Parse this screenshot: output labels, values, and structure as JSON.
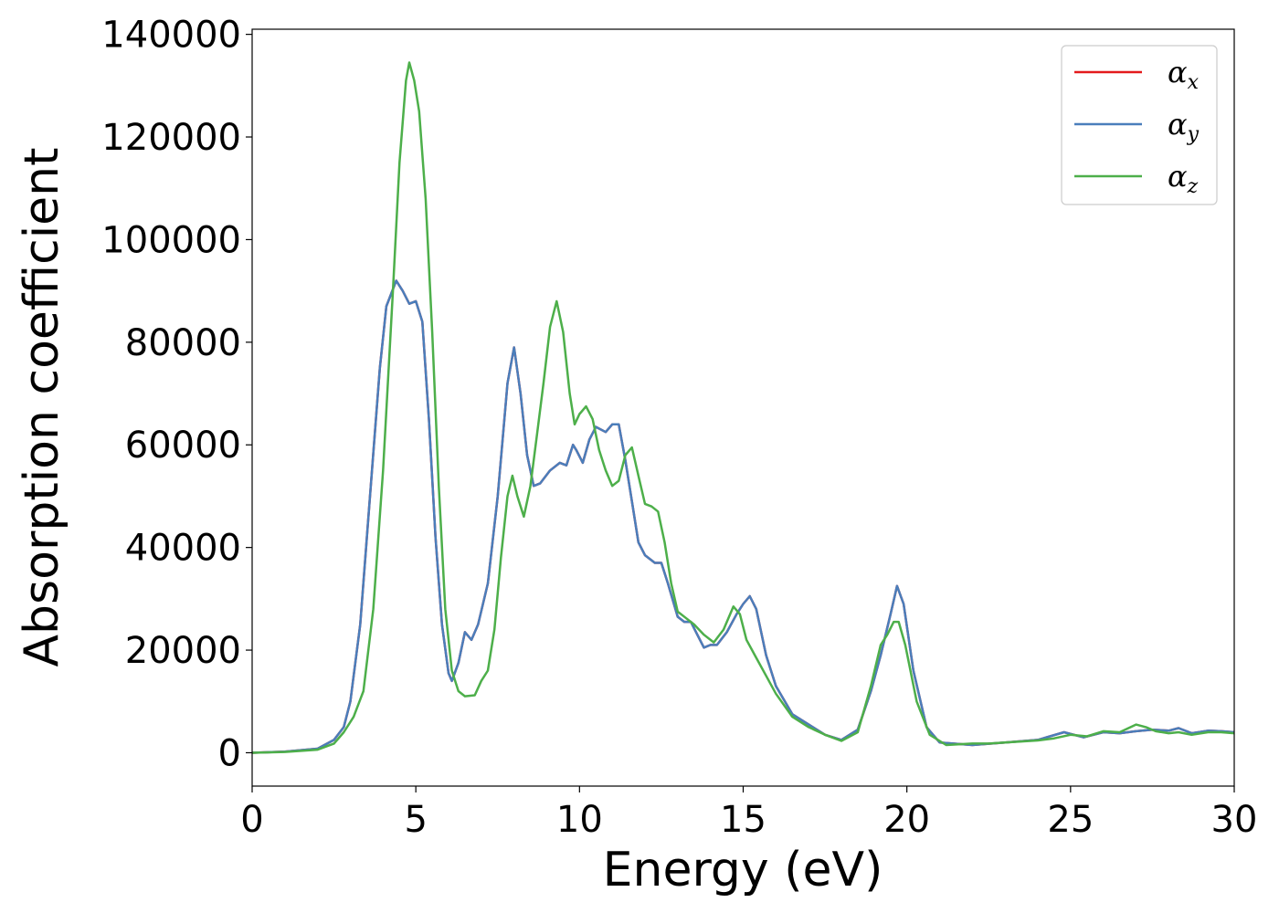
{
  "chart_data": {
    "type": "line",
    "title": "",
    "xlabel": "Energy (eV)",
    "ylabel": "Absorption coefficient",
    "xlim": [
      0,
      30
    ],
    "ylim": [
      -6500,
      141000
    ],
    "xticks": [
      0,
      5,
      10,
      15,
      20,
      25,
      30
    ],
    "yticks": [
      0,
      20000,
      40000,
      60000,
      80000,
      100000,
      120000,
      140000
    ],
    "grid": false,
    "legend": {
      "position": "top-right",
      "items": [
        {
          "symbol": "α",
          "sub": "x",
          "series": "alpha_x"
        },
        {
          "symbol": "α",
          "sub": "y",
          "series": "alpha_y"
        },
        {
          "symbol": "α",
          "sub": "z",
          "series": "alpha_z"
        }
      ]
    },
    "colors": {
      "alpha_x": "#e41a1c",
      "alpha_y": "#4a7ebb",
      "alpha_z": "#4daf4a"
    },
    "series": [
      {
        "key": "alpha_x",
        "points": [
          [
            0,
            0
          ],
          [
            1,
            200
          ],
          [
            2,
            800
          ],
          [
            2.5,
            2500
          ],
          [
            2.8,
            5000
          ],
          [
            3.0,
            10000
          ],
          [
            3.3,
            25000
          ],
          [
            3.6,
            50000
          ],
          [
            3.9,
            75000
          ],
          [
            4.1,
            87000
          ],
          [
            4.4,
            92000
          ],
          [
            4.6,
            90000
          ],
          [
            4.8,
            87500
          ],
          [
            5.0,
            88000
          ],
          [
            5.2,
            84000
          ],
          [
            5.4,
            65000
          ],
          [
            5.6,
            42000
          ],
          [
            5.8,
            25000
          ],
          [
            6.0,
            15500
          ],
          [
            6.1,
            14000
          ],
          [
            6.3,
            17500
          ],
          [
            6.5,
            23500
          ],
          [
            6.7,
            22000
          ],
          [
            6.9,
            25000
          ],
          [
            7.2,
            33000
          ],
          [
            7.5,
            50000
          ],
          [
            7.8,
            72000
          ],
          [
            8.0,
            79000
          ],
          [
            8.2,
            70000
          ],
          [
            8.4,
            58000
          ],
          [
            8.6,
            52000
          ],
          [
            8.8,
            52500
          ],
          [
            9.1,
            55000
          ],
          [
            9.4,
            56500
          ],
          [
            9.6,
            56000
          ],
          [
            9.8,
            60000
          ],
          [
            9.9,
            59000
          ],
          [
            10.1,
            56500
          ],
          [
            10.3,
            61000
          ],
          [
            10.5,
            63500
          ],
          [
            10.8,
            62500
          ],
          [
            11.0,
            64000
          ],
          [
            11.2,
            64000
          ],
          [
            11.4,
            57000
          ],
          [
            11.6,
            49000
          ],
          [
            11.8,
            41000
          ],
          [
            12.0,
            38500
          ],
          [
            12.3,
            37000
          ],
          [
            12.5,
            37000
          ],
          [
            12.7,
            33000
          ],
          [
            13.0,
            26500
          ],
          [
            13.2,
            25500
          ],
          [
            13.4,
            25500
          ],
          [
            13.6,
            23000
          ],
          [
            13.8,
            20500
          ],
          [
            14.0,
            21000
          ],
          [
            14.2,
            21000
          ],
          [
            14.5,
            23500
          ],
          [
            14.8,
            27000
          ],
          [
            15.0,
            29000
          ],
          [
            15.2,
            30500
          ],
          [
            15.4,
            28000
          ],
          [
            15.7,
            19000
          ],
          [
            16.0,
            13000
          ],
          [
            16.5,
            7500
          ],
          [
            17.0,
            5500
          ],
          [
            17.5,
            3500
          ],
          [
            18.0,
            2500
          ],
          [
            18.5,
            4500
          ],
          [
            18.9,
            12000
          ],
          [
            19.2,
            19000
          ],
          [
            19.5,
            27000
          ],
          [
            19.7,
            32500
          ],
          [
            19.9,
            29000
          ],
          [
            20.2,
            16000
          ],
          [
            20.6,
            5000
          ],
          [
            21.0,
            2000
          ],
          [
            22.0,
            1500
          ],
          [
            23.0,
            2000
          ],
          [
            24.0,
            2500
          ],
          [
            24.8,
            4000
          ],
          [
            25.4,
            3000
          ],
          [
            26.0,
            4000
          ],
          [
            26.5,
            3800
          ],
          [
            27.0,
            4200
          ],
          [
            27.5,
            4500
          ],
          [
            28.0,
            4300
          ],
          [
            28.3,
            4800
          ],
          [
            28.7,
            3800
          ],
          [
            29.2,
            4300
          ],
          [
            29.6,
            4200
          ],
          [
            30.0,
            4000
          ]
        ]
      },
      {
        "key": "alpha_y",
        "points": [
          [
            0,
            0
          ],
          [
            1,
            200
          ],
          [
            2,
            800
          ],
          [
            2.5,
            2500
          ],
          [
            2.8,
            5000
          ],
          [
            3.0,
            10000
          ],
          [
            3.3,
            25000
          ],
          [
            3.6,
            50000
          ],
          [
            3.9,
            75000
          ],
          [
            4.1,
            87000
          ],
          [
            4.4,
            92000
          ],
          [
            4.6,
            90000
          ],
          [
            4.8,
            87500
          ],
          [
            5.0,
            88000
          ],
          [
            5.2,
            84000
          ],
          [
            5.4,
            65000
          ],
          [
            5.6,
            42000
          ],
          [
            5.8,
            25000
          ],
          [
            6.0,
            15500
          ],
          [
            6.1,
            14000
          ],
          [
            6.3,
            17500
          ],
          [
            6.5,
            23500
          ],
          [
            6.7,
            22000
          ],
          [
            6.9,
            25000
          ],
          [
            7.2,
            33000
          ],
          [
            7.5,
            50000
          ],
          [
            7.8,
            72000
          ],
          [
            8.0,
            79000
          ],
          [
            8.2,
            70000
          ],
          [
            8.4,
            58000
          ],
          [
            8.6,
            52000
          ],
          [
            8.8,
            52500
          ],
          [
            9.1,
            55000
          ],
          [
            9.4,
            56500
          ],
          [
            9.6,
            56000
          ],
          [
            9.8,
            60000
          ],
          [
            9.9,
            59000
          ],
          [
            10.1,
            56500
          ],
          [
            10.3,
            61000
          ],
          [
            10.5,
            63500
          ],
          [
            10.8,
            62500
          ],
          [
            11.0,
            64000
          ],
          [
            11.2,
            64000
          ],
          [
            11.4,
            57000
          ],
          [
            11.6,
            49000
          ],
          [
            11.8,
            41000
          ],
          [
            12.0,
            38500
          ],
          [
            12.3,
            37000
          ],
          [
            12.5,
            37000
          ],
          [
            12.7,
            33000
          ],
          [
            13.0,
            26500
          ],
          [
            13.2,
            25500
          ],
          [
            13.4,
            25500
          ],
          [
            13.6,
            23000
          ],
          [
            13.8,
            20500
          ],
          [
            14.0,
            21000
          ],
          [
            14.2,
            21000
          ],
          [
            14.5,
            23500
          ],
          [
            14.8,
            27000
          ],
          [
            15.0,
            29000
          ],
          [
            15.2,
            30500
          ],
          [
            15.4,
            28000
          ],
          [
            15.7,
            19000
          ],
          [
            16.0,
            13000
          ],
          [
            16.5,
            7500
          ],
          [
            17.0,
            5500
          ],
          [
            17.5,
            3500
          ],
          [
            18.0,
            2500
          ],
          [
            18.5,
            4500
          ],
          [
            18.9,
            12000
          ],
          [
            19.2,
            19000
          ],
          [
            19.5,
            27000
          ],
          [
            19.7,
            32500
          ],
          [
            19.9,
            29000
          ],
          [
            20.2,
            16000
          ],
          [
            20.6,
            5000
          ],
          [
            21.0,
            2000
          ],
          [
            22.0,
            1500
          ],
          [
            23.0,
            2000
          ],
          [
            24.0,
            2500
          ],
          [
            24.8,
            4000
          ],
          [
            25.4,
            3000
          ],
          [
            26.0,
            4000
          ],
          [
            26.5,
            3800
          ],
          [
            27.0,
            4200
          ],
          [
            27.5,
            4500
          ],
          [
            28.0,
            4300
          ],
          [
            28.3,
            4800
          ],
          [
            28.7,
            3800
          ],
          [
            29.2,
            4300
          ],
          [
            29.6,
            4200
          ],
          [
            30.0,
            4000
          ]
        ]
      },
      {
        "key": "alpha_z",
        "points": [
          [
            0,
            0
          ],
          [
            1,
            150
          ],
          [
            2,
            600
          ],
          [
            2.5,
            1800
          ],
          [
            2.8,
            4000
          ],
          [
            3.1,
            7000
          ],
          [
            3.4,
            12000
          ],
          [
            3.7,
            28000
          ],
          [
            4.0,
            55000
          ],
          [
            4.3,
            90000
          ],
          [
            4.5,
            115000
          ],
          [
            4.7,
            131000
          ],
          [
            4.8,
            134500
          ],
          [
            4.95,
            131000
          ],
          [
            5.1,
            125000
          ],
          [
            5.3,
            108000
          ],
          [
            5.5,
            82000
          ],
          [
            5.7,
            52000
          ],
          [
            5.9,
            28000
          ],
          [
            6.1,
            16000
          ],
          [
            6.3,
            12000
          ],
          [
            6.5,
            11000
          ],
          [
            6.8,
            11200
          ],
          [
            7.0,
            14000
          ],
          [
            7.2,
            16000
          ],
          [
            7.4,
            24000
          ],
          [
            7.6,
            38000
          ],
          [
            7.8,
            50000
          ],
          [
            7.95,
            54000
          ],
          [
            8.1,
            50000
          ],
          [
            8.3,
            46000
          ],
          [
            8.5,
            52000
          ],
          [
            8.7,
            62000
          ],
          [
            8.9,
            72000
          ],
          [
            9.1,
            83000
          ],
          [
            9.3,
            88000
          ],
          [
            9.5,
            82000
          ],
          [
            9.7,
            70000
          ],
          [
            9.85,
            64000
          ],
          [
            10.0,
            66000
          ],
          [
            10.2,
            67500
          ],
          [
            10.4,
            65000
          ],
          [
            10.6,
            59000
          ],
          [
            10.8,
            55000
          ],
          [
            11.0,
            52000
          ],
          [
            11.2,
            53000
          ],
          [
            11.4,
            58000
          ],
          [
            11.6,
            59500
          ],
          [
            11.8,
            54000
          ],
          [
            12.0,
            48500
          ],
          [
            12.2,
            48000
          ],
          [
            12.4,
            47000
          ],
          [
            12.6,
            41000
          ],
          [
            12.8,
            33000
          ],
          [
            13.0,
            27500
          ],
          [
            13.3,
            26000
          ],
          [
            13.5,
            25000
          ],
          [
            13.8,
            23000
          ],
          [
            14.1,
            21500
          ],
          [
            14.4,
            24000
          ],
          [
            14.7,
            28500
          ],
          [
            14.9,
            27000
          ],
          [
            15.1,
            22000
          ],
          [
            15.4,
            18500
          ],
          [
            15.7,
            15000
          ],
          [
            16.0,
            11500
          ],
          [
            16.5,
            7000
          ],
          [
            17.0,
            5000
          ],
          [
            17.5,
            3500
          ],
          [
            18.0,
            2300
          ],
          [
            18.5,
            4000
          ],
          [
            18.9,
            13000
          ],
          [
            19.2,
            21000
          ],
          [
            19.4,
            23000
          ],
          [
            19.6,
            25500
          ],
          [
            19.75,
            25500
          ],
          [
            19.95,
            21000
          ],
          [
            20.3,
            10000
          ],
          [
            20.7,
            3500
          ],
          [
            21.2,
            1500
          ],
          [
            22.0,
            1800
          ],
          [
            22.5,
            1800
          ],
          [
            23.0,
            2000
          ],
          [
            23.5,
            2200
          ],
          [
            24.0,
            2400
          ],
          [
            24.5,
            2800
          ],
          [
            25.0,
            3500
          ],
          [
            25.5,
            3200
          ],
          [
            26.0,
            4200
          ],
          [
            26.5,
            4000
          ],
          [
            27.0,
            5500
          ],
          [
            27.3,
            5000
          ],
          [
            27.6,
            4200
          ],
          [
            28.0,
            3800
          ],
          [
            28.3,
            4000
          ],
          [
            28.7,
            3500
          ],
          [
            29.2,
            4000
          ],
          [
            29.6,
            4000
          ],
          [
            30.0,
            3800
          ]
        ]
      }
    ]
  }
}
